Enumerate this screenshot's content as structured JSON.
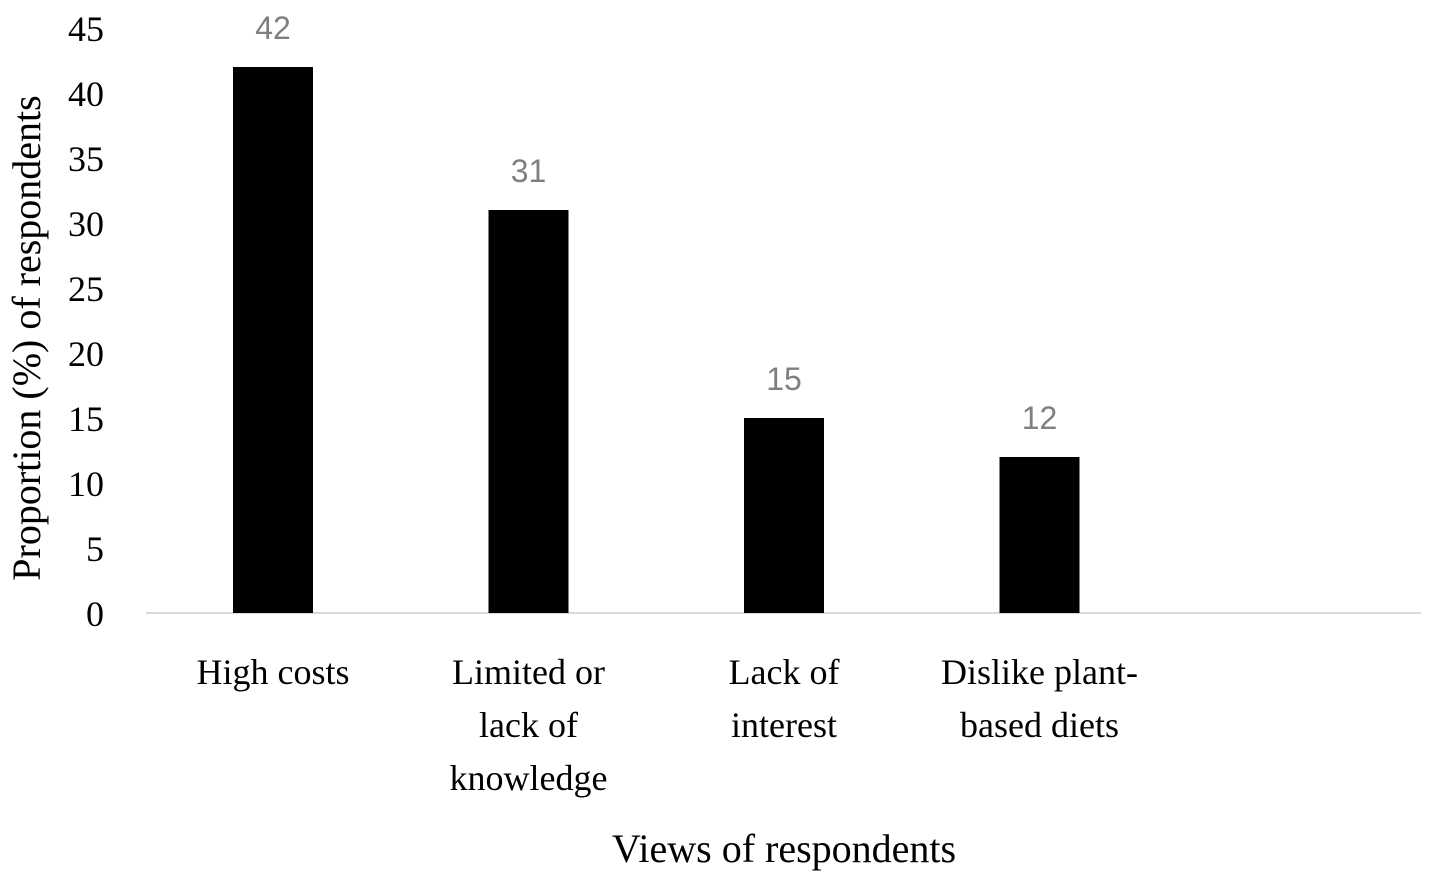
{
  "chart_data": {
    "type": "bar",
    "categories": [
      [
        "High costs"
      ],
      [
        "Limited or",
        "lack of",
        "knowledge"
      ],
      [
        "Lack of",
        "interest"
      ],
      [
        "Dislike plant-",
        "based diets"
      ]
    ],
    "values": [
      42,
      31,
      15,
      12
    ],
    "data_labels": [
      "42",
      "31",
      "15",
      "12"
    ],
    "title": "",
    "xlabel": "Views of respondents",
    "ylabel": "Proportion (%) of respondents",
    "ylim": [
      0,
      45
    ],
    "yticks": [
      0,
      5,
      10,
      15,
      20,
      25,
      30,
      35,
      40,
      45
    ],
    "grid": false,
    "legend": "none",
    "colors": {
      "bar": "#000000",
      "data_label": "#7f7f7f",
      "axis_line": "#d9d9d9",
      "text": "#000000"
    }
  }
}
